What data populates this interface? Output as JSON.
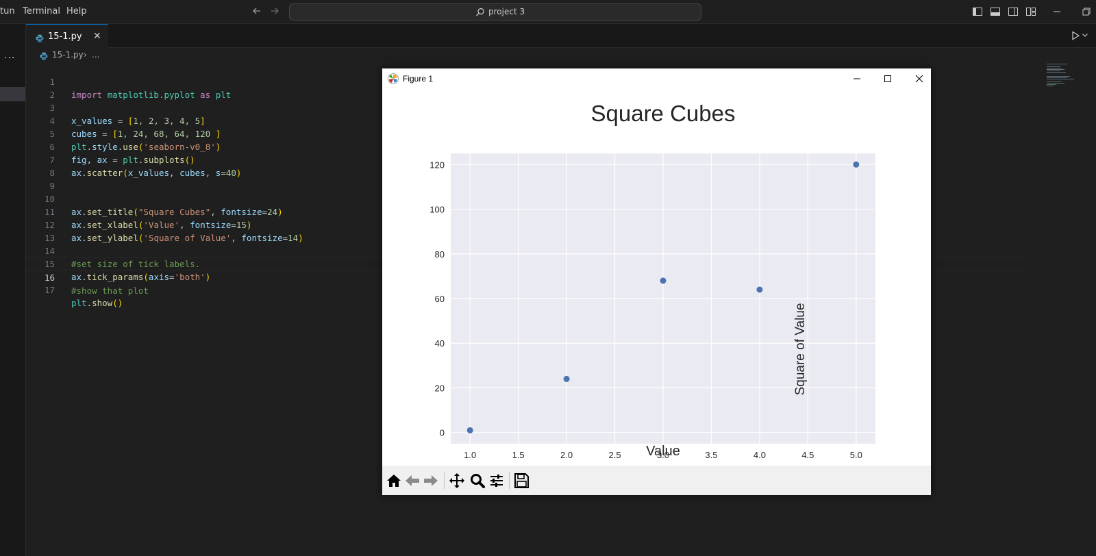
{
  "titlebar": {
    "menu": [
      "tun",
      "Terminal",
      "Help"
    ],
    "command_center": "project 3"
  },
  "tab": {
    "label": "15-1.py",
    "close": "✕"
  },
  "breadcrumb": {
    "file": "15-1.py",
    "separator": "›",
    "more": "..."
  },
  "sidebar": {
    "more": "···"
  },
  "editor": {
    "current_line": 16,
    "lines": [
      {
        "n": "1"
      },
      {
        "n": "2"
      },
      {
        "n": "3"
      },
      {
        "n": "4"
      },
      {
        "n": "5"
      },
      {
        "n": "6"
      },
      {
        "n": "7"
      },
      {
        "n": "8"
      },
      {
        "n": "9"
      },
      {
        "n": "10"
      },
      {
        "n": "11"
      },
      {
        "n": "12"
      },
      {
        "n": "13"
      },
      {
        "n": "14"
      },
      {
        "n": "15"
      },
      {
        "n": "16"
      },
      {
        "n": "17"
      }
    ],
    "tokens": {
      "l1": [
        "import",
        "matplotlib.pyplot",
        "as",
        "plt"
      ],
      "l3": [
        "x_values",
        " = ",
        "[",
        "1, 2, 3, 4, 5",
        "]"
      ],
      "l4": [
        "cubes",
        " = ",
        "[",
        "1, 24, 68, 64, 120 ",
        "]"
      ],
      "l5": [
        "plt",
        ".",
        "style",
        ".",
        "use",
        "(",
        "'seaborn-v0_8'",
        ")"
      ],
      "l6": [
        "fig",
        ", ",
        "ax",
        " = ",
        "plt",
        ".",
        "subplots",
        "()"
      ],
      "l7": [
        "ax",
        ".",
        "scatter",
        "(",
        "x_values",
        ", ",
        "cubes",
        ", ",
        "s",
        "=",
        "40",
        ")"
      ],
      "l10": [
        "ax",
        ".",
        "set_title",
        "(",
        "\"Square Cubes\"",
        ", ",
        "fontsize",
        "=",
        "24",
        ")"
      ],
      "l11": [
        "ax",
        ".",
        "set_xlabel",
        "(",
        "'Value'",
        ", ",
        "fontsize",
        "=",
        "15",
        ")"
      ],
      "l12": [
        "ax",
        ".",
        "set_ylabel",
        "(",
        "'Square of Value'",
        ", ",
        "fontsize",
        "=",
        "14",
        ")"
      ],
      "l14": [
        "#set size of tick labels."
      ],
      "l15": [
        "ax",
        ".",
        "tick_params",
        "(",
        "axis",
        "=",
        "'both'",
        ")"
      ],
      "l16": [
        "#show that plot"
      ],
      "l17": [
        "plt",
        ".",
        "show",
        "()"
      ]
    }
  },
  "figure": {
    "window_title": "Figure 1",
    "colors": {
      "point": "#4c72b0",
      "plot_bg": "#eaeaf2",
      "grid": "#ffffff"
    }
  },
  "chart_data": {
    "type": "scatter",
    "title": "Square Cubes",
    "xlabel": "Value",
    "ylabel": "Square of Value",
    "x": [
      1,
      2,
      3,
      4,
      5
    ],
    "y": [
      1,
      24,
      68,
      64,
      120
    ],
    "xlim": [
      0.8,
      5.2
    ],
    "ylim": [
      -5,
      125
    ],
    "xticks": [
      1.0,
      1.5,
      2.0,
      2.5,
      3.0,
      3.5,
      4.0,
      4.5,
      5.0
    ],
    "xtick_labels": [
      "1.0",
      "1.5",
      "2.0",
      "2.5",
      "3.0",
      "3.5",
      "4.0",
      "4.5",
      "5.0"
    ],
    "yticks": [
      0,
      20,
      40,
      60,
      80,
      100,
      120
    ],
    "ytick_labels": [
      "0",
      "20",
      "40",
      "60",
      "80",
      "100",
      "120"
    ],
    "grid": true,
    "style": "seaborn-v0_8"
  }
}
